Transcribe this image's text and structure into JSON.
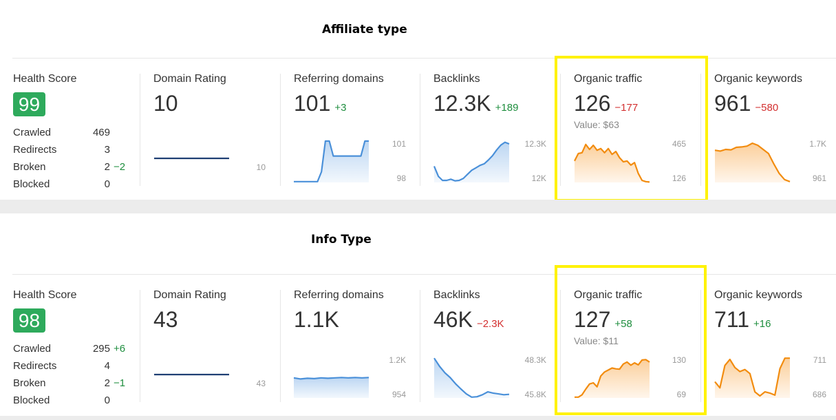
{
  "sections": [
    {
      "title": "Affiliate type",
      "health": {
        "label": "Health Score",
        "score": "99",
        "rows": [
          {
            "label": "Crawled",
            "value": "469",
            "delta": ""
          },
          {
            "label": "Redirects",
            "value": "3",
            "delta": ""
          },
          {
            "label": "Broken",
            "value": "2",
            "delta": "−2"
          },
          {
            "label": "Blocked",
            "value": "0",
            "delta": ""
          }
        ]
      },
      "domain_rating": {
        "label": "Domain Rating",
        "value": "10",
        "axis_low": "10"
      },
      "referring_domains": {
        "label": "Referring domains",
        "value": "101",
        "delta": "+3",
        "axis_high": "101",
        "axis_low": "98"
      },
      "backlinks": {
        "label": "Backlinks",
        "value": "12.3K",
        "delta": "+189",
        "axis_high": "12.3K",
        "axis_low": "12K"
      },
      "organic_traffic": {
        "label": "Organic traffic",
        "value": "126",
        "delta": "−177",
        "value_note": "Value: $63",
        "axis_high": "465",
        "axis_low": "126"
      },
      "organic_keywords": {
        "label": "Organic keywords",
        "value": "961",
        "delta": "−580",
        "axis_high": "1.7K",
        "axis_low": "961"
      }
    },
    {
      "title": "Info Type",
      "health": {
        "label": "Health Score",
        "score": "98",
        "rows": [
          {
            "label": "Crawled",
            "value": "295",
            "delta": "+6"
          },
          {
            "label": "Redirects",
            "value": "4",
            "delta": ""
          },
          {
            "label": "Broken",
            "value": "2",
            "delta": "−1"
          },
          {
            "label": "Blocked",
            "value": "0",
            "delta": ""
          }
        ]
      },
      "domain_rating": {
        "label": "Domain Rating",
        "value": "43",
        "axis_low": "43"
      },
      "referring_domains": {
        "label": "Referring domains",
        "value": "1.1K",
        "delta": "",
        "axis_high": "1.2K",
        "axis_low": "954"
      },
      "backlinks": {
        "label": "Backlinks",
        "value": "46K",
        "delta": "−2.3K",
        "axis_high": "48.3K",
        "axis_low": "45.8K"
      },
      "organic_traffic": {
        "label": "Organic traffic",
        "value": "127",
        "delta": "+58",
        "value_note": "Value: $11",
        "axis_high": "130",
        "axis_low": "69"
      },
      "organic_keywords": {
        "label": "Organic keywords",
        "value": "711",
        "delta": "+16",
        "axis_high": "711",
        "axis_low": "686"
      }
    }
  ],
  "colors": {
    "blue_line": "#4a90d9",
    "navy_line": "#1f3f73",
    "orange_line": "#f28c0f",
    "green_badge": "#2eaa5c",
    "highlight": "#fff200",
    "positive": "#1e8e3e",
    "negative": "#d32f2f"
  },
  "sparklines": {
    "s0_dr": [
      1,
      1,
      1,
      1,
      1,
      1,
      1,
      1,
      1,
      1
    ],
    "s0_rd": [
      0.02,
      0.02,
      0.02,
      0.02,
      0.02,
      0.02,
      0.02,
      0.25,
      0.97,
      0.97,
      0.62,
      0.62,
      0.62,
      0.62,
      0.62,
      0.62,
      0.62,
      0.62,
      0.97,
      0.97
    ],
    "s0_bl": [
      0.4,
      0.15,
      0.05,
      0.05,
      0.08,
      0.04,
      0.05,
      0.1,
      0.2,
      0.3,
      0.36,
      0.42,
      0.46,
      0.55,
      0.66,
      0.8,
      0.92,
      0.99,
      0.95
    ],
    "s0_ot": [
      0.52,
      0.7,
      0.72,
      0.92,
      0.8,
      0.9,
      0.78,
      0.82,
      0.72,
      0.82,
      0.68,
      0.75,
      0.6,
      0.5,
      0.52,
      0.42,
      0.48,
      0.22,
      0.05,
      0.02,
      0.01
    ],
    "s0_ok": [
      0.78,
      0.76,
      0.8,
      0.79,
      0.85,
      0.86,
      0.88,
      0.95,
      0.9,
      0.8,
      0.7,
      0.45,
      0.22,
      0.07,
      0.02
    ],
    "s1_dr": [
      1,
      1,
      1,
      1,
      1,
      1,
      1,
      1,
      1,
      1
    ],
    "s1_rd": [
      0.55,
      0.52,
      0.54,
      0.53,
      0.55,
      0.54,
      0.55,
      0.56,
      0.55,
      0.56,
      0.55,
      0.56
    ],
    "s1_bl": [
      0.98,
      0.78,
      0.62,
      0.5,
      0.35,
      0.22,
      0.1,
      0.02,
      0.03,
      0.08,
      0.15,
      0.12,
      0.1,
      0.08,
      0.09
    ],
    "s1_ot": [
      0.02,
      0.02,
      0.08,
      0.22,
      0.35,
      0.38,
      0.28,
      0.55,
      0.65,
      0.7,
      0.75,
      0.73,
      0.72,
      0.85,
      0.9,
      0.82,
      0.88,
      0.83,
      0.95,
      0.96,
      0.9
    ],
    "s1_ok": [
      0.4,
      0.25,
      0.8,
      0.95,
      0.75,
      0.65,
      0.7,
      0.6,
      0.15,
      0.05,
      0.15,
      0.12,
      0.07,
      0.72,
      0.98,
      0.98
    ]
  }
}
